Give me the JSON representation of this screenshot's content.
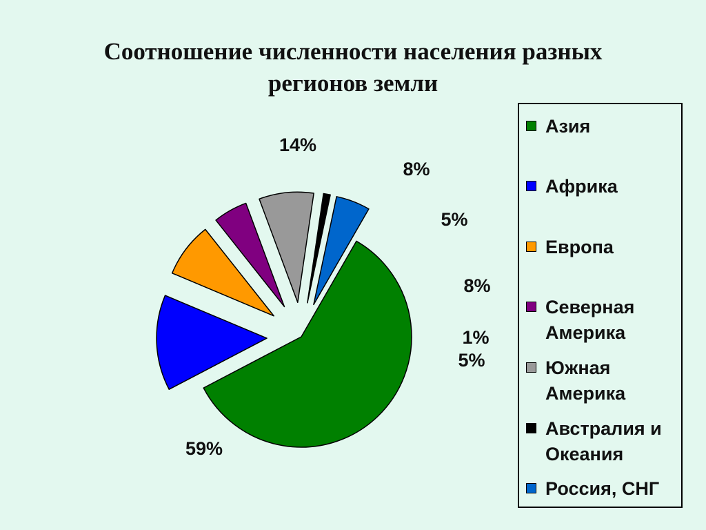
{
  "title": {
    "line1": "Соотношение численности населения разных",
    "line2": "регионов земли"
  },
  "chart_data": {
    "type": "pie",
    "title": "Соотношение численности населения разных регионов земли",
    "exploded": true,
    "legend_position": "right",
    "slices": [
      {
        "name": "Азия",
        "value": 59,
        "label": "59%",
        "color": "#008000"
      },
      {
        "name": "Африка",
        "value": 14,
        "label": "14%",
        "color": "#0000ff"
      },
      {
        "name": "Европа",
        "value": 8,
        "label": "8%",
        "color": "#ff9900"
      },
      {
        "name": "Северная Америка",
        "value": 5,
        "label": "5%",
        "color": "#800080"
      },
      {
        "name": "Южная Америка",
        "value": 8,
        "label": "8%",
        "color": "#999999"
      },
      {
        "name": "Австралия и Океания",
        "value": 1,
        "label": "1%",
        "color": "#000000"
      },
      {
        "name": "Россия, СНГ",
        "value": 5,
        "label": "5%",
        "color": "#0066cc"
      }
    ]
  },
  "legend": {
    "items": [
      {
        "line1": "Азия",
        "line2": ""
      },
      {
        "line1": "Африка",
        "line2": ""
      },
      {
        "line1": "Европа",
        "line2": ""
      },
      {
        "line1": "Северная",
        "line2": "Америка"
      },
      {
        "line1": "Южная",
        "line2": "Америка"
      },
      {
        "line1": "Австралия и",
        "line2": "Океания"
      },
      {
        "line1": "Россия, СНГ",
        "line2": ""
      }
    ]
  }
}
